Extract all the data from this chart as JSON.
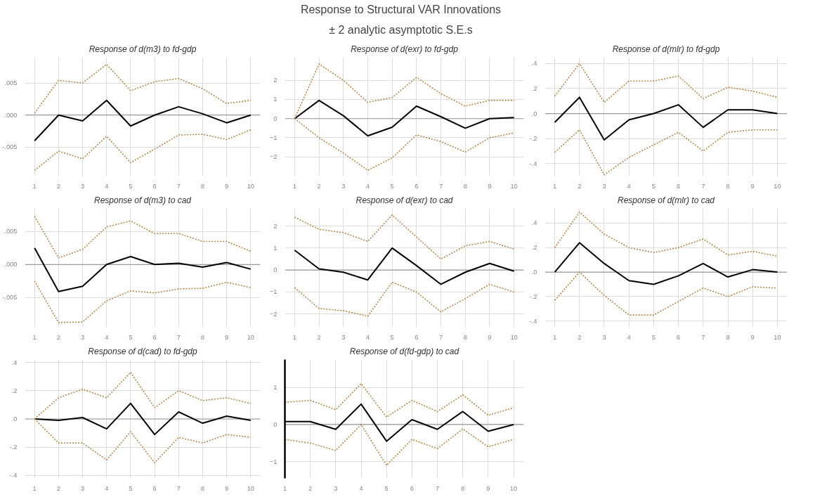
{
  "chart_data": [
    {
      "type": "other",
      "title": "Response to Structural VAR Innovations",
      "subtitle": "± 2 analytic asymptotic S.E.s"
    },
    {
      "type": "line",
      "title": "Response of d(m3) to fd-gdp",
      "x": [
        1,
        2,
        3,
        4,
        5,
        6,
        7,
        8,
        9,
        10
      ],
      "xlim": [
        0.6,
        10.4
      ],
      "xticks": [
        1,
        2,
        3,
        4,
        5,
        6,
        7,
        8,
        9,
        10
      ],
      "ylim": [
        -0.0095,
        0.009
      ],
      "yticks": [
        {
          "value": 0.005,
          "label": ".005"
        },
        {
          "value": 0,
          "label": ".000"
        },
        {
          "value": -0.005,
          "label": "-.005"
        }
      ],
      "grid": true,
      "ref_lines": [
        {
          "axis": "y",
          "value": 0,
          "color": "#9a9a9a"
        }
      ],
      "series": [
        {
          "color": "#000000",
          "line_style": "solid",
          "values": [
            -0.004,
            0.0,
            -0.0009,
            0.0023,
            -0.0017,
            0.0,
            0.0013,
            0.0002,
            -0.0012,
            0.0
          ]
        },
        {
          "color": "#b8864b",
          "line_style": "dotted",
          "values": [
            0.0003,
            0.0054,
            0.005,
            0.0079,
            0.0038,
            0.0052,
            0.0057,
            0.0041,
            0.0018,
            0.0023
          ]
        },
        {
          "color": "#b8864b",
          "line_style": "dotted",
          "values": [
            -0.0086,
            -0.0056,
            -0.0068,
            -0.0033,
            -0.0074,
            -0.0053,
            -0.0031,
            -0.003,
            -0.0038,
            -0.0023
          ]
        }
      ]
    },
    {
      "type": "line",
      "title": "Response of d(exr) to fd-gdp",
      "x": [
        1,
        2,
        3,
        4,
        5,
        6,
        7,
        8,
        9,
        10
      ],
      "xlim": [
        0.6,
        10.4
      ],
      "xticks": [
        1,
        2,
        3,
        4,
        5,
        6,
        7,
        8,
        9,
        10
      ],
      "ylim": [
        -3,
        3.2
      ],
      "yticks": [
        2,
        1,
        0,
        -1,
        -2
      ],
      "grid": true,
      "ref_lines": [
        {
          "axis": "y",
          "value": 0,
          "color": "#9a9a9a"
        }
      ],
      "series": [
        {
          "color": "#000000",
          "line_style": "solid",
          "values": [
            0,
            0.95,
            0.15,
            -0.9,
            -0.45,
            0.65,
            0.1,
            -0.5,
            0.0,
            0.05
          ]
        },
        {
          "color": "#b8864b",
          "line_style": "dotted",
          "values": [
            0,
            2.85,
            2.0,
            0.85,
            1.1,
            2.15,
            1.3,
            0.65,
            0.95,
            0.95
          ]
        },
        {
          "color": "#b8864b",
          "line_style": "dotted",
          "values": [
            0,
            -1.0,
            -1.8,
            -2.7,
            -2.05,
            -0.85,
            -1.2,
            -1.75,
            -1.0,
            -0.75
          ]
        }
      ]
    },
    {
      "type": "line",
      "title": "Response of d(mlr) to fd-gdp",
      "x": [
        1,
        2,
        3,
        4,
        5,
        6,
        7,
        8,
        9,
        10
      ],
      "xlim": [
        0.6,
        10.4
      ],
      "xticks": [
        1,
        2,
        3,
        4,
        5,
        6,
        7,
        8,
        9,
        10
      ],
      "ylim": [
        -0.5,
        0.45
      ],
      "yticks": [
        {
          "value": 0.4,
          "label": ".4"
        },
        {
          "value": 0.2,
          "label": ".2"
        },
        {
          "value": 0,
          "label": ".0"
        },
        {
          "value": -0.2,
          "label": "-.2"
        },
        {
          "value": -0.4,
          "label": "-.4"
        }
      ],
      "grid": true,
      "ref_lines": [
        {
          "axis": "y",
          "value": 0,
          "color": "#9a9a9a"
        }
      ],
      "series": [
        {
          "color": "#000000",
          "line_style": "solid",
          "values": [
            -0.07,
            0.13,
            -0.21,
            -0.05,
            0.0,
            0.07,
            -0.11,
            0.03,
            0.03,
            0.0
          ]
        },
        {
          "color": "#b8864b",
          "line_style": "dotted",
          "values": [
            0.14,
            0.4,
            0.09,
            0.26,
            0.26,
            0.3,
            0.12,
            0.21,
            0.18,
            0.13
          ]
        },
        {
          "color": "#b8864b",
          "line_style": "dotted",
          "values": [
            -0.31,
            -0.13,
            -0.49,
            -0.35,
            -0.25,
            -0.15,
            -0.3,
            -0.15,
            -0.13,
            -0.13
          ]
        }
      ]
    },
    {
      "type": "line",
      "title": "Response of d(m3) to cad",
      "x": [
        1,
        2,
        3,
        4,
        5,
        6,
        7,
        8,
        9,
        10
      ],
      "xlim": [
        0.6,
        10.4
      ],
      "xticks": [
        1,
        2,
        3,
        4,
        5,
        6,
        7,
        8,
        9,
        10
      ],
      "ylim": [
        -0.0095,
        0.0085
      ],
      "yticks": [
        {
          "value": 0.005,
          "label": ".005"
        },
        {
          "value": 0,
          "label": ".000"
        },
        {
          "value": -0.005,
          "label": "-.005"
        }
      ],
      "grid": true,
      "ref_lines": [
        {
          "axis": "y",
          "value": 0,
          "color": "#9a9a9a"
        }
      ],
      "series": [
        {
          "color": "#000000",
          "line_style": "solid",
          "values": [
            0.0025,
            -0.0041,
            -0.0033,
            0.0,
            0.0012,
            0.0,
            0.0002,
            -0.0004,
            0.0003,
            -0.0007
          ]
        },
        {
          "color": "#b8864b",
          "line_style": "dotted",
          "values": [
            0.0073,
            0.001,
            0.0023,
            0.0057,
            0.0066,
            0.0047,
            0.0047,
            0.0035,
            0.0035,
            0.002
          ]
        },
        {
          "color": "#b8864b",
          "line_style": "dotted",
          "values": [
            -0.0025,
            -0.0088,
            -0.0087,
            -0.0055,
            -0.004,
            -0.0043,
            -0.0037,
            -0.0036,
            -0.0027,
            -0.0035
          ]
        }
      ]
    },
    {
      "type": "line",
      "title": "Response of d(exr) to cad",
      "x": [
        1,
        2,
        3,
        4,
        5,
        6,
        7,
        8,
        9,
        10
      ],
      "xlim": [
        0.6,
        10.4
      ],
      "xticks": [
        1,
        2,
        3,
        4,
        5,
        6,
        7,
        8,
        9,
        10
      ],
      "ylim": [
        -2.6,
        2.8
      ],
      "yticks": [
        2,
        1,
        0,
        -1,
        -2
      ],
      "grid": true,
      "ref_lines": [
        {
          "axis": "y",
          "value": 0,
          "color": "#9a9a9a"
        }
      ],
      "series": [
        {
          "color": "#000000",
          "line_style": "solid",
          "values": [
            0.9,
            0.05,
            -0.1,
            -0.45,
            1.0,
            0.2,
            -0.65,
            -0.1,
            0.3,
            -0.05
          ]
        },
        {
          "color": "#b8864b",
          "line_style": "dotted",
          "values": [
            2.4,
            1.85,
            1.7,
            1.3,
            2.5,
            1.5,
            0.5,
            1.1,
            1.3,
            0.95
          ]
        },
        {
          "color": "#b8864b",
          "line_style": "dotted",
          "values": [
            -0.8,
            -1.75,
            -1.85,
            -2.1,
            -0.55,
            -1.0,
            -1.9,
            -1.3,
            -0.65,
            -1.0
          ]
        }
      ]
    },
    {
      "type": "line",
      "title": "Response of d(mlr) to cad",
      "x": [
        1,
        2,
        3,
        4,
        5,
        6,
        7,
        8,
        9,
        10
      ],
      "xlim": [
        0.6,
        10.4
      ],
      "xticks": [
        1,
        2,
        3,
        4,
        5,
        6,
        7,
        8,
        9,
        10
      ],
      "ylim": [
        -0.45,
        0.52
      ],
      "yticks": [
        {
          "value": 0.4,
          "label": ".4"
        },
        {
          "value": 0.2,
          "label": ".2"
        },
        {
          "value": 0,
          "label": ".0"
        },
        {
          "value": -0.2,
          "label": "-.2"
        },
        {
          "value": -0.4,
          "label": "-.4"
        }
      ],
      "grid": true,
      "ref_lines": [
        {
          "axis": "y",
          "value": 0,
          "color": "#9a9a9a"
        }
      ],
      "series": [
        {
          "color": "#000000",
          "line_style": "solid",
          "values": [
            0.0,
            0.24,
            0.07,
            -0.07,
            -0.1,
            -0.03,
            0.07,
            -0.04,
            0.02,
            0.0
          ]
        },
        {
          "color": "#b8864b",
          "line_style": "dotted",
          "values": [
            0.2,
            0.49,
            0.31,
            0.2,
            0.16,
            0.2,
            0.27,
            0.14,
            0.17,
            0.13
          ]
        },
        {
          "color": "#b8864b",
          "line_style": "dotted",
          "values": [
            -0.23,
            0.0,
            -0.19,
            -0.35,
            -0.35,
            -0.24,
            -0.13,
            -0.2,
            -0.12,
            -0.13
          ]
        }
      ]
    },
    {
      "type": "line",
      "title": "Response of d(cad) to fd-gdp",
      "x": [
        1,
        2,
        3,
        4,
        5,
        6,
        7,
        8,
        9,
        10
      ],
      "xlim": [
        0.6,
        10.4
      ],
      "xticks": [
        1,
        2,
        3,
        4,
        5,
        6,
        7,
        8,
        9,
        10
      ],
      "ylim": [
        -0.42,
        0.42
      ],
      "yticks": [
        {
          "value": 0.4,
          "label": ".4"
        },
        {
          "value": 0.2,
          "label": ".2"
        },
        {
          "value": 0,
          "label": ".0"
        },
        {
          "value": -0.2,
          "label": "-.2"
        },
        {
          "value": -0.4,
          "label": "-.4"
        }
      ],
      "grid": true,
      "ref_lines": [
        {
          "axis": "y",
          "value": 0,
          "color": "#9a9a9a"
        }
      ],
      "series": [
        {
          "color": "#000000",
          "line_style": "solid",
          "values": [
            0.0,
            -0.01,
            0.01,
            -0.07,
            0.11,
            -0.11,
            0.05,
            -0.03,
            0.02,
            -0.01
          ]
        },
        {
          "color": "#b8864b",
          "line_style": "dotted",
          "values": [
            0.0,
            0.15,
            0.21,
            0.15,
            0.33,
            0.08,
            0.2,
            0.13,
            0.15,
            0.11
          ]
        },
        {
          "color": "#b8864b",
          "line_style": "dotted",
          "values": [
            0.0,
            -0.17,
            -0.17,
            -0.29,
            -0.09,
            -0.31,
            -0.13,
            -0.17,
            -0.11,
            -0.13
          ]
        }
      ]
    },
    {
      "type": "line",
      "title": "Response of d(fd-gdp) to cad",
      "x": [
        1,
        2,
        3,
        4,
        5,
        6,
        7,
        8,
        9,
        10
      ],
      "xlim": [
        1,
        10.4
      ],
      "xticks": [
        1,
        2,
        3,
        4,
        5,
        6,
        7,
        8,
        9,
        10
      ],
      "ylim": [
        -1.45,
        1.75
      ],
      "yticks": [
        1,
        0,
        -1
      ],
      "grid": true,
      "ref_lines": [
        {
          "axis": "y",
          "value": 0,
          "color": "#9a9a9a"
        }
      ],
      "series": [
        {
          "color": "#000000",
          "line_style": "solid",
          "values": [
            0.08,
            0.08,
            -0.13,
            0.55,
            -0.45,
            0.13,
            -0.13,
            0.35,
            -0.18,
            0.0
          ]
        },
        {
          "color": "#b8864b",
          "line_style": "dotted",
          "values": [
            0.6,
            0.65,
            0.4,
            1.1,
            0.2,
            0.65,
            0.35,
            0.8,
            0.25,
            0.45
          ]
        },
        {
          "color": "#b8864b",
          "line_style": "dotted",
          "values": [
            -0.4,
            -0.5,
            -0.7,
            0.0,
            -1.1,
            -0.4,
            -0.65,
            -0.12,
            -0.6,
            -0.4
          ]
        }
      ]
    }
  ]
}
